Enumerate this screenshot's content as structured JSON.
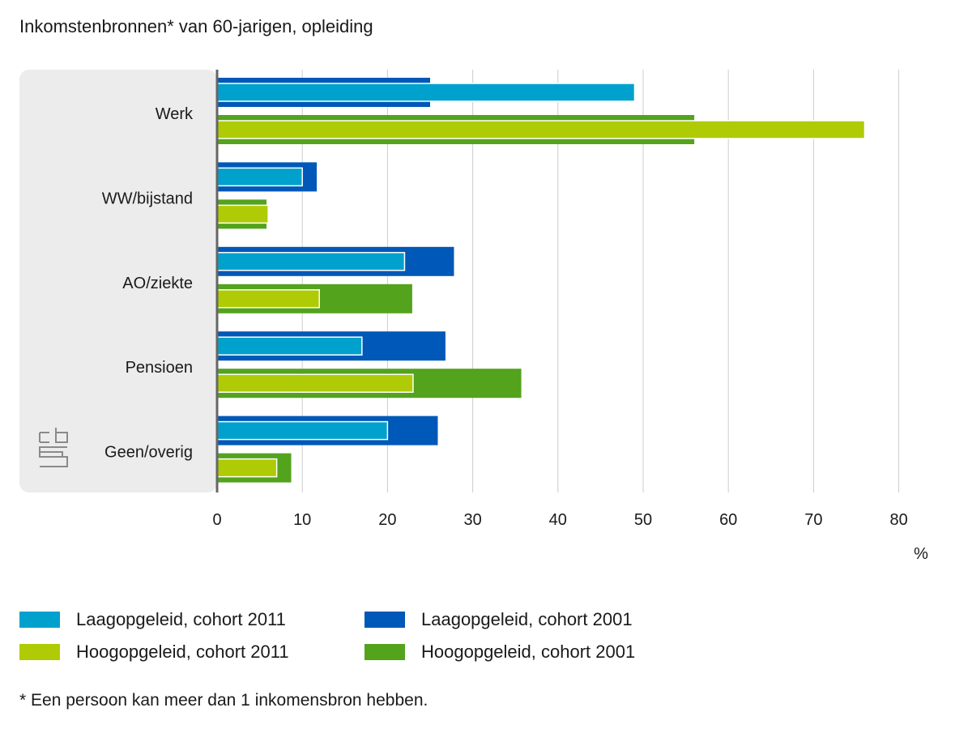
{
  "title": "Inkomstenbronnen* van 60-jarigen, opleiding",
  "footnote": "* Een persoon kan meer dan 1 inkomensbron hebben.",
  "logo_icon": "cbs-logo-icon",
  "colors": {
    "laag_2011": "#00a1cd",
    "laag_2001": "#0058b8",
    "hoog_2011": "#afcb05",
    "hoog_2001": "#53a31d",
    "panel": "#ececec",
    "axis": "#666666",
    "grid": "#cccccc"
  },
  "chart_data": {
    "type": "bar",
    "orientation": "horizontal",
    "categories": [
      "Werk",
      "WW/bijstand",
      "AO/ziekte",
      "Pensioen",
      "Geen/overig"
    ],
    "series": [
      {
        "name": "Laagopgeleid, cohort 2011",
        "key": "laag_2011",
        "values": [
          49,
          10,
          22,
          17,
          20
        ]
      },
      {
        "name": "Laagopgeleid, cohort 2001",
        "key": "laag_2001",
        "values": [
          25,
          11.7,
          27.8,
          26.8,
          25.9
        ]
      },
      {
        "name": "Hoogopgeleid, cohort 2011",
        "key": "hoog_2011",
        "values": [
          76,
          6,
          12,
          23,
          7
        ]
      },
      {
        "name": "Hoogopgeleid, cohort 2001",
        "key": "hoog_2001",
        "values": [
          56,
          5.8,
          22.9,
          35.7,
          8.7
        ]
      }
    ],
    "xticks": [
      "0",
      "10",
      "20",
      "30",
      "40",
      "50",
      "60",
      "70",
      "80"
    ],
    "xlim": [
      0,
      80
    ],
    "xunit": "%",
    "grid": true,
    "legend_position": "bottom"
  },
  "legend": [
    {
      "label": "Laagopgeleid, cohort 2011",
      "key": "laag_2011"
    },
    {
      "label": "Laagopgeleid, cohort 2001",
      "key": "laag_2001"
    },
    {
      "label": "Hoogopgeleid, cohort 2011",
      "key": "hoog_2011"
    },
    {
      "label": "Hoogopgeleid, cohort 2001",
      "key": "hoog_2001"
    }
  ]
}
